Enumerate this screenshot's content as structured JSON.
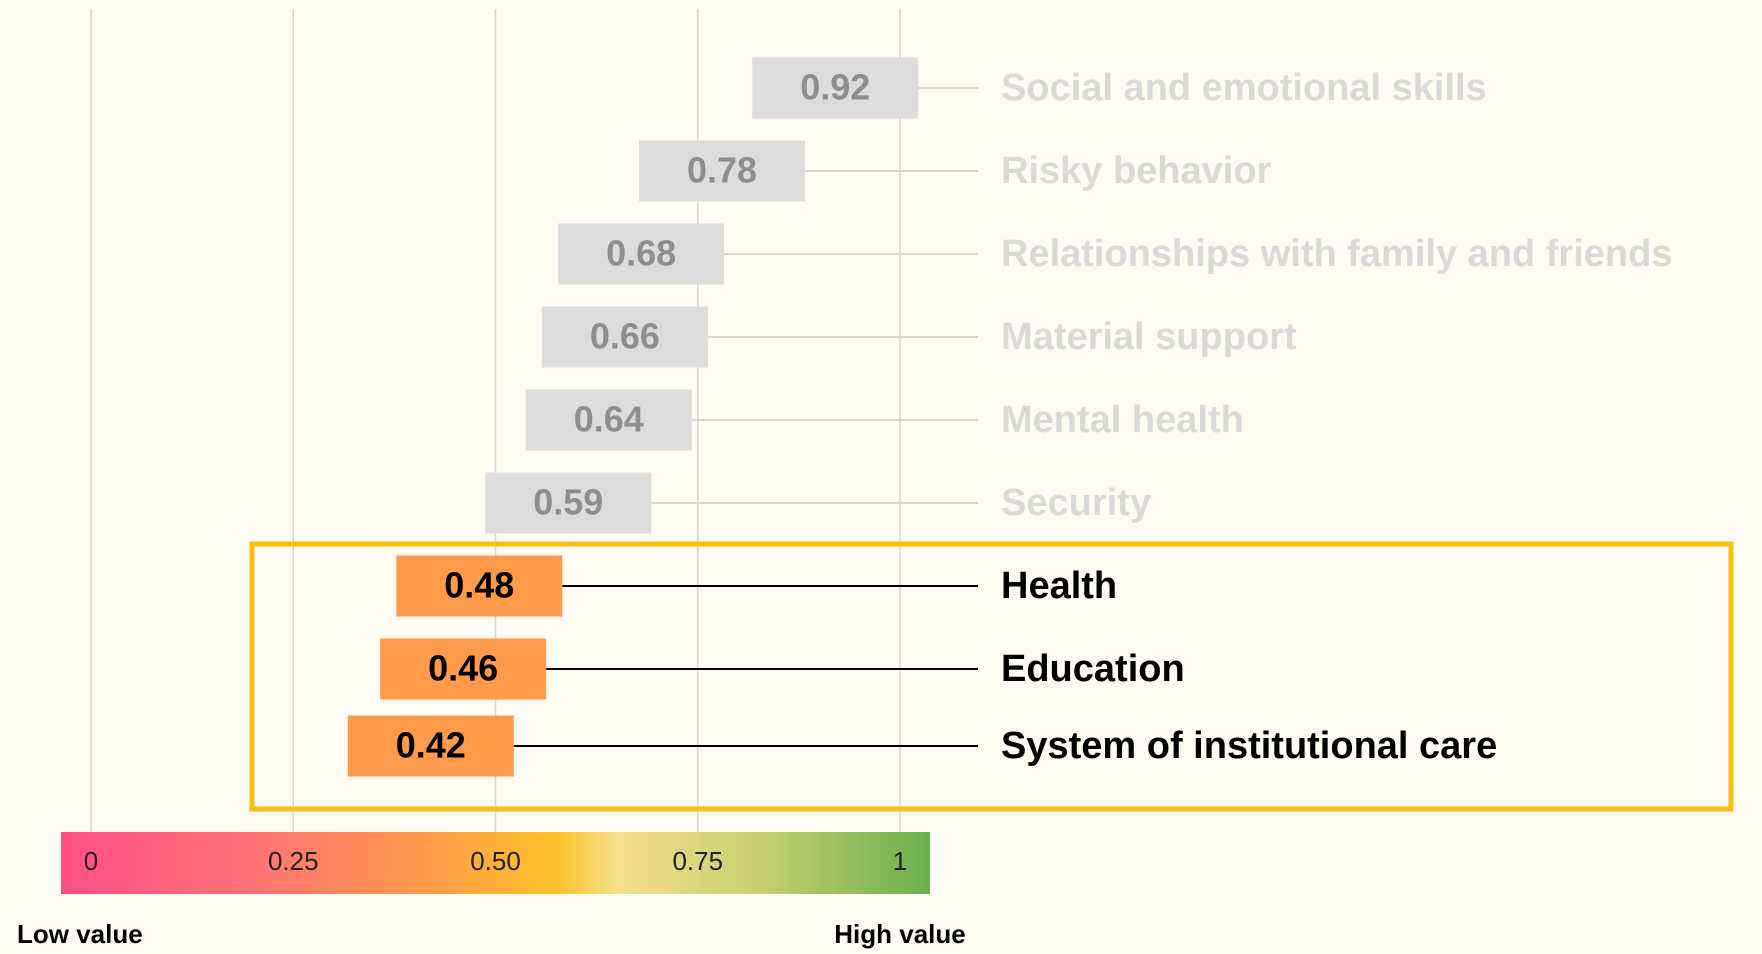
{
  "chart_data": {
    "type": "dot",
    "categories": [
      "Social and emotional skills",
      "Risky behavior",
      "Relationships with family and friends",
      "Material support",
      "Mental health",
      "Security",
      "Health",
      "Education",
      "System of institutional care"
    ],
    "values": [
      0.92,
      0.78,
      0.68,
      0.66,
      0.64,
      0.59,
      0.48,
      0.46,
      0.42
    ],
    "color": "#dcdcdc",
    "highlight_color": "#ff9a4a",
    "highlight": [
      6,
      7,
      8
    ],
    "xlim": [
      0,
      1
    ],
    "xticks": [
      0,
      0.25,
      {
        "value": 0.5,
        "label": "0.50"
      },
      0.75,
      1
    ],
    "grid": true,
    "colorscale": [
      "#ff4f86",
      "#ff6f78",
      "#ff9a4a",
      "#fcc22a",
      "#f6df8c",
      "#c9cf72",
      "#6ab04c"
    ],
    "colorscale_labels": [
      "Low value",
      "High value"
    ]
  }
}
